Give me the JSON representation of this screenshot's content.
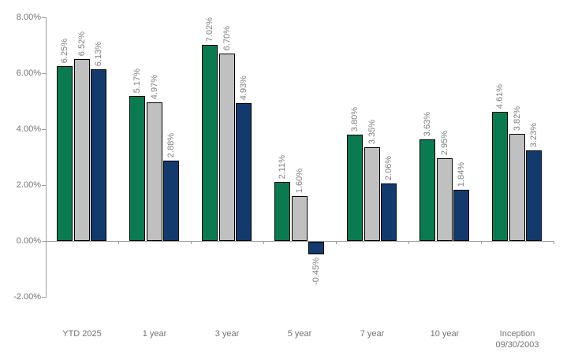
{
  "chart_data": {
    "type": "bar",
    "title": "",
    "categories": [
      "YTD 2025",
      "1 year",
      "3 year",
      "5 year",
      "7 year",
      "10 year",
      "Inception 09/30/2003"
    ],
    "category_label_lines": [
      [
        "YTD 2025"
      ],
      [
        "1 year"
      ],
      [
        "3 year"
      ],
      [
        "5 year"
      ],
      [
        "7 year"
      ],
      [
        "10 year"
      ],
      [
        "Inception",
        "09/30/2003"
      ]
    ],
    "series": [
      {
        "name": "series-green",
        "color": "#0a7a50",
        "values": [
          6.25,
          5.17,
          7.02,
          2.11,
          3.8,
          3.63,
          4.61
        ],
        "labels": [
          "6.25%",
          "5.17%",
          "7.02%",
          "2.11%",
          "3.80%",
          "3.63%",
          "4.61%"
        ]
      },
      {
        "name": "series-gray",
        "color": "#c0c0c0",
        "values": [
          6.52,
          4.97,
          6.7,
          1.6,
          3.35,
          2.95,
          3.82
        ],
        "labels": [
          "6.52%",
          "4.97%",
          "6.70%",
          "1.60%",
          "3.35%",
          "2.95%",
          "3.82%"
        ]
      },
      {
        "name": "series-navy",
        "color": "#123a6d",
        "values": [
          6.13,
          2.88,
          4.93,
          -0.45,
          2.06,
          1.84,
          3.23
        ],
        "labels": [
          "6.13%",
          "2.88%",
          "4.93%",
          "-0.45%",
          "2.06%",
          "1.84%",
          "3.23%"
        ]
      }
    ],
    "y_axis": {
      "min": -2,
      "max": 8,
      "tick_values": [
        8,
        6,
        4,
        2,
        0,
        -2
      ],
      "tick_labels": [
        "8.00%",
        "6.00%",
        "4.00%",
        "2.00%",
        "0.00%",
        "-2.00%"
      ]
    },
    "x_axis": {
      "baseline_value": 0
    },
    "grid": "off",
    "legend": "none",
    "data_label_color": "#7f7f7f",
    "axis_text_color": "#737373",
    "axis_line_color": "#9c9c9c",
    "bar_border_color": "#000000"
  }
}
